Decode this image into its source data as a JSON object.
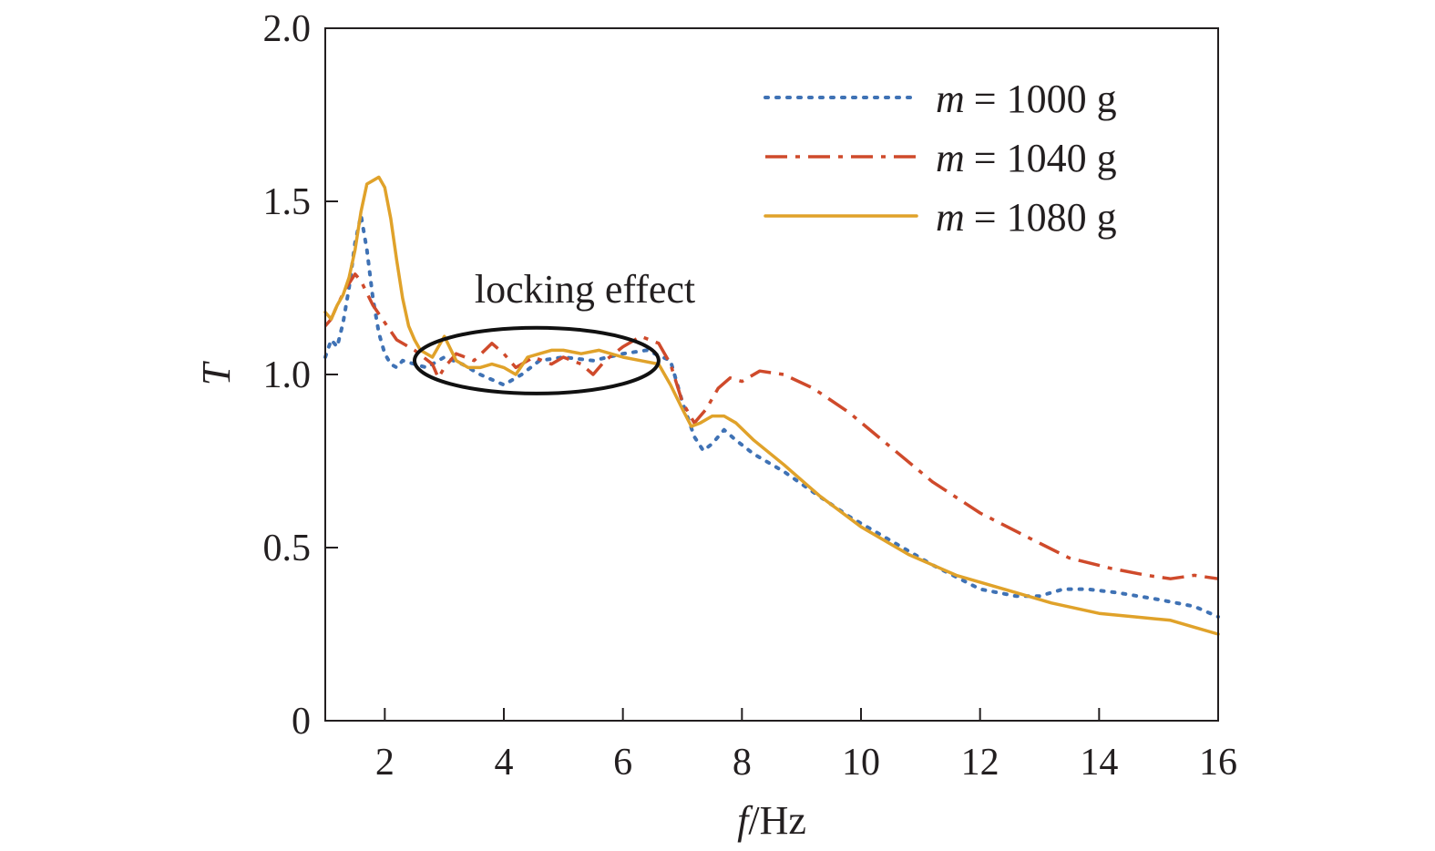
{
  "chart_data": {
    "type": "line",
    "xlabel": {
      "var": "f",
      "unit": "/Hz"
    },
    "ylabel": "T",
    "xlim": [
      1,
      16
    ],
    "ylim": [
      0,
      2.0
    ],
    "x_ticks": [
      2,
      4,
      6,
      8,
      10,
      12,
      14,
      16
    ],
    "x_tick_labels": [
      "2",
      "4",
      "6",
      "8",
      "10",
      "12",
      "14",
      "16"
    ],
    "y_ticks": [
      0,
      0.5,
      1.0,
      1.5,
      2.0
    ],
    "y_tick_labels": [
      "0",
      "0.5",
      "1.0",
      "1.5",
      "2.0"
    ],
    "grid": false,
    "legend_position": "top-right",
    "annotation": {
      "text": "locking effect",
      "ellipse_center": [
        4.55,
        1.04
      ],
      "ellipse_radius": [
        2.05,
        0.095
      ]
    },
    "series": [
      {
        "name": "m = 1000 g",
        "legend_var": "m",
        "legend_value": "= 1000 g",
        "color": "#3f72b5",
        "style": "dotted",
        "points": [
          [
            1.0,
            1.05
          ],
          [
            1.1,
            1.1
          ],
          [
            1.2,
            1.08
          ],
          [
            1.3,
            1.15
          ],
          [
            1.4,
            1.25
          ],
          [
            1.5,
            1.38
          ],
          [
            1.6,
            1.46
          ],
          [
            1.7,
            1.36
          ],
          [
            1.8,
            1.22
          ],
          [
            1.9,
            1.12
          ],
          [
            2.0,
            1.06
          ],
          [
            2.1,
            1.03
          ],
          [
            2.2,
            1.02
          ],
          [
            2.3,
            1.04
          ],
          [
            2.5,
            1.03
          ],
          [
            2.7,
            1.02
          ],
          [
            3.0,
            1.05
          ],
          [
            3.3,
            1.03
          ],
          [
            3.6,
            1.0
          ],
          [
            4.0,
            0.97
          ],
          [
            4.3,
            1.0
          ],
          [
            4.6,
            1.04
          ],
          [
            5.0,
            1.05
          ],
          [
            5.5,
            1.04
          ],
          [
            6.0,
            1.06
          ],
          [
            6.4,
            1.07
          ],
          [
            6.8,
            1.04
          ],
          [
            7.0,
            0.92
          ],
          [
            7.2,
            0.82
          ],
          [
            7.35,
            0.78
          ],
          [
            7.5,
            0.8
          ],
          [
            7.7,
            0.84
          ],
          [
            7.9,
            0.81
          ],
          [
            8.2,
            0.77
          ],
          [
            8.7,
            0.72
          ],
          [
            9.2,
            0.66
          ],
          [
            9.8,
            0.59
          ],
          [
            10.5,
            0.52
          ],
          [
            11.2,
            0.45
          ],
          [
            12.0,
            0.38
          ],
          [
            12.6,
            0.36
          ],
          [
            13.0,
            0.36
          ],
          [
            13.4,
            0.38
          ],
          [
            13.8,
            0.38
          ],
          [
            14.3,
            0.37
          ],
          [
            15.0,
            0.35
          ],
          [
            15.6,
            0.33
          ],
          [
            16.0,
            0.3
          ]
        ]
      },
      {
        "name": "m = 1040 g",
        "legend_var": "m",
        "legend_value": "= 1040 g",
        "color": "#cf4a2b",
        "style": "dashdot",
        "points": [
          [
            1.0,
            1.14
          ],
          [
            1.1,
            1.16
          ],
          [
            1.2,
            1.2
          ],
          [
            1.35,
            1.25
          ],
          [
            1.5,
            1.29
          ],
          [
            1.6,
            1.27
          ],
          [
            1.8,
            1.2
          ],
          [
            2.0,
            1.15
          ],
          [
            2.2,
            1.1
          ],
          [
            2.5,
            1.07
          ],
          [
            2.8,
            1.03
          ],
          [
            2.9,
            0.99
          ],
          [
            3.0,
            1.02
          ],
          [
            3.2,
            1.06
          ],
          [
            3.5,
            1.04
          ],
          [
            3.8,
            1.09
          ],
          [
            4.0,
            1.06
          ],
          [
            4.2,
            1.02
          ],
          [
            4.5,
            1.05
          ],
          [
            4.8,
            1.03
          ],
          [
            5.0,
            1.05
          ],
          [
            5.3,
            1.03
          ],
          [
            5.5,
            1.0
          ],
          [
            5.7,
            1.04
          ],
          [
            6.0,
            1.08
          ],
          [
            6.3,
            1.11
          ],
          [
            6.6,
            1.09
          ],
          [
            6.8,
            1.03
          ],
          [
            7.0,
            0.92
          ],
          [
            7.2,
            0.86
          ],
          [
            7.4,
            0.9
          ],
          [
            7.6,
            0.96
          ],
          [
            7.8,
            0.99
          ],
          [
            8.0,
            0.98
          ],
          [
            8.3,
            1.01
          ],
          [
            8.7,
            1.0
          ],
          [
            9.2,
            0.96
          ],
          [
            9.8,
            0.89
          ],
          [
            10.5,
            0.79
          ],
          [
            11.2,
            0.69
          ],
          [
            12.0,
            0.6
          ],
          [
            12.8,
            0.53
          ],
          [
            13.5,
            0.47
          ],
          [
            14.2,
            0.44
          ],
          [
            14.8,
            0.42
          ],
          [
            15.2,
            0.41
          ],
          [
            15.6,
            0.42
          ],
          [
            16.0,
            0.41
          ]
        ]
      },
      {
        "name": "m = 1080 g",
        "legend_var": "m",
        "legend_value": "= 1080 g",
        "color": "#e0a22a",
        "style": "solid",
        "points": [
          [
            1.0,
            1.18
          ],
          [
            1.1,
            1.16
          ],
          [
            1.2,
            1.2
          ],
          [
            1.3,
            1.23
          ],
          [
            1.4,
            1.28
          ],
          [
            1.5,
            1.36
          ],
          [
            1.6,
            1.47
          ],
          [
            1.7,
            1.55
          ],
          [
            1.8,
            1.56
          ],
          [
            1.9,
            1.57
          ],
          [
            2.0,
            1.54
          ],
          [
            2.1,
            1.45
          ],
          [
            2.2,
            1.33
          ],
          [
            2.3,
            1.22
          ],
          [
            2.4,
            1.14
          ],
          [
            2.5,
            1.1
          ],
          [
            2.6,
            1.07
          ],
          [
            2.8,
            1.05
          ],
          [
            3.0,
            1.11
          ],
          [
            3.2,
            1.04
          ],
          [
            3.4,
            1.02
          ],
          [
            3.6,
            1.02
          ],
          [
            3.8,
            1.03
          ],
          [
            4.0,
            1.02
          ],
          [
            4.2,
            1.0
          ],
          [
            4.4,
            1.05
          ],
          [
            4.6,
            1.06
          ],
          [
            4.8,
            1.07
          ],
          [
            5.0,
            1.07
          ],
          [
            5.3,
            1.06
          ],
          [
            5.6,
            1.07
          ],
          [
            6.0,
            1.05
          ],
          [
            6.3,
            1.04
          ],
          [
            6.6,
            1.03
          ],
          [
            6.8,
            0.97
          ],
          [
            7.0,
            0.9
          ],
          [
            7.15,
            0.85
          ],
          [
            7.3,
            0.86
          ],
          [
            7.5,
            0.88
          ],
          [
            7.7,
            0.88
          ],
          [
            7.9,
            0.86
          ],
          [
            8.2,
            0.81
          ],
          [
            8.7,
            0.74
          ],
          [
            9.3,
            0.65
          ],
          [
            10.0,
            0.56
          ],
          [
            10.8,
            0.48
          ],
          [
            11.6,
            0.42
          ],
          [
            12.4,
            0.38
          ],
          [
            13.2,
            0.34
          ],
          [
            14.0,
            0.31
          ],
          [
            14.6,
            0.3
          ],
          [
            15.2,
            0.29
          ],
          [
            15.6,
            0.27
          ],
          [
            16.0,
            0.25
          ]
        ]
      }
    ]
  }
}
